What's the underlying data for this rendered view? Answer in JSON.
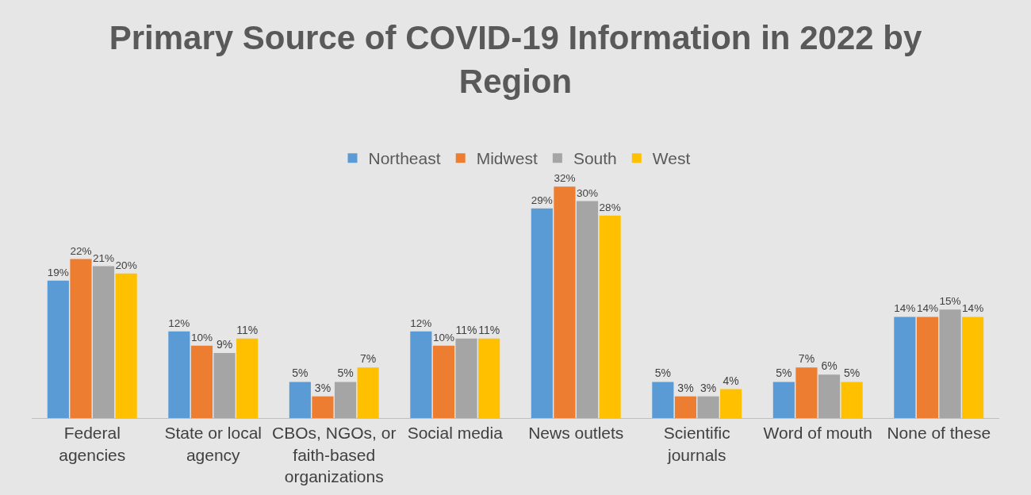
{
  "chart_data": {
    "type": "bar",
    "title": "Primary Source of COVID-19 Information in 2022 by Region",
    "categories": [
      "Federal agencies",
      "State or local agency",
      "CBOs, NGOs, or faith-based organizations",
      "Social media",
      "News outlets",
      "Scientific journals",
      "Word of mouth",
      "None of these"
    ],
    "series": [
      {
        "name": "Northeast",
        "color": "#5b9bd5",
        "values": [
          19,
          12,
          5,
          12,
          29,
          5,
          5,
          14
        ],
        "value_labels": [
          "19%",
          "12%",
          "5%",
          "12%",
          "29%",
          "5%",
          "5%",
          "14%"
        ]
      },
      {
        "name": "Midwest",
        "color": "#ed7d31",
        "values": [
          22,
          10,
          3,
          10,
          32,
          3,
          7,
          14
        ],
        "value_labels": [
          "22%",
          "10%",
          "3%",
          "10%",
          "32%",
          "3%",
          "7%",
          "14%"
        ]
      },
      {
        "name": "South",
        "color": "#a5a5a5",
        "values": [
          21,
          9,
          5,
          11,
          30,
          3,
          6,
          15
        ],
        "value_labels": [
          "21%",
          "9%",
          "5%",
          "11%",
          "30%",
          "3%",
          "6%",
          "15%"
        ]
      },
      {
        "name": "West",
        "color": "#ffc000",
        "values": [
          20,
          11,
          7,
          11,
          28,
          4,
          5,
          14
        ],
        "value_labels": [
          "20%",
          "11%",
          "7%",
          "11%",
          "28%",
          "4%",
          "5%",
          "14%"
        ]
      }
    ],
    "legend": "top",
    "grid": false
  }
}
